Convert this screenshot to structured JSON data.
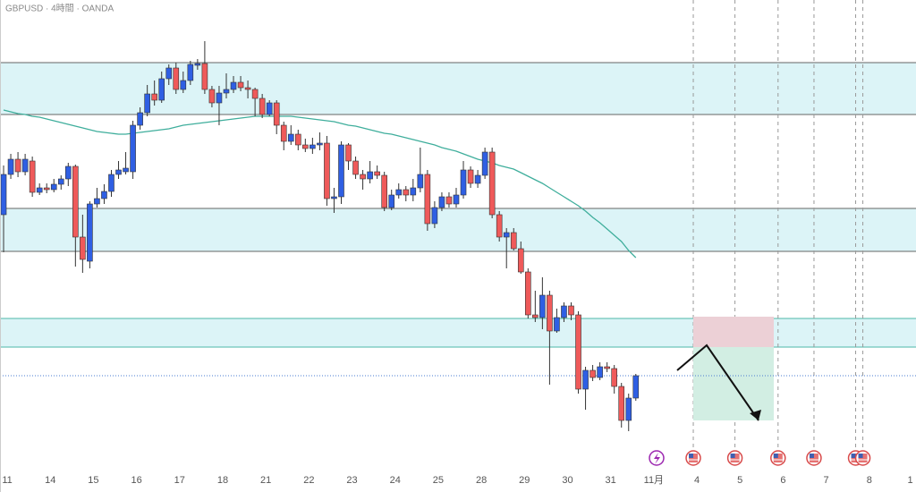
{
  "chart_data": {
    "type": "candlestick",
    "title": "GBPUSD · 4時間 · OANDA",
    "up_color": "#2f5fe3",
    "down_color": "#ef5a5a",
    "xlim": [
      -0.5,
      127
    ],
    "ylim": [
      1.265,
      1.32
    ],
    "xticks": [
      {
        "value": 0.5,
        "label": "11"
      },
      {
        "value": 6.5,
        "label": "14"
      },
      {
        "value": 12.5,
        "label": "15"
      },
      {
        "value": 18.5,
        "label": "16"
      },
      {
        "value": 24.5,
        "label": "17"
      },
      {
        "value": 30.5,
        "label": "18"
      },
      {
        "value": 36.5,
        "label": "21"
      },
      {
        "value": 42.5,
        "label": "22"
      },
      {
        "value": 48.5,
        "label": "23"
      },
      {
        "value": 54.5,
        "label": "24"
      },
      {
        "value": 60.5,
        "label": "25"
      },
      {
        "value": 66.5,
        "label": "28"
      },
      {
        "value": 72.5,
        "label": "29"
      },
      {
        "value": 78.5,
        "label": "30"
      },
      {
        "value": 84.5,
        "label": "31"
      },
      {
        "value": 90.5,
        "label": "11月"
      },
      {
        "value": 96.5,
        "label": "4"
      },
      {
        "value": 102.5,
        "label": "5"
      },
      {
        "value": 108.5,
        "label": "6"
      },
      {
        "value": 114.5,
        "label": "7"
      },
      {
        "value": 120.5,
        "label": "8"
      },
      {
        "value": 126.2,
        "label": "1"
      }
    ],
    "open": [
      1.296,
      1.3005,
      1.3022,
      1.3008,
      1.302,
      1.2985,
      1.299,
      1.2988,
      1.2994,
      1.3,
      1.3014,
      1.2935,
      1.2908,
      1.2972,
      1.2978,
      1.2986,
      1.3005,
      1.3008,
      1.3008,
      1.306,
      1.3074,
      1.3095,
      1.3088,
      1.3112,
      1.3124,
      1.31,
      1.311,
      1.3127,
      1.3129,
      1.31,
      1.3085,
      1.3096,
      1.31,
      1.3108,
      1.3102,
      1.31,
      1.309,
      1.3072,
      1.3085,
      1.306,
      1.3042,
      1.305,
      1.3038,
      1.3034,
      1.3038,
      1.304,
      1.2978,
      1.298,
      1.3038,
      1.302,
      1.3005,
      1.3,
      1.3008,
      1.3004,
      1.2968,
      1.2982,
      1.2988,
      1.2982,
      1.299,
      1.3005,
      1.295,
      1.2968,
      1.298,
      1.2972,
      1.2982,
      1.301,
      1.2995,
      1.3004,
      1.303,
      1.296,
      1.2935,
      1.294,
      1.2922,
      1.2896,
      1.2848,
      1.2845,
      1.287,
      1.283,
      1.2845,
      1.2858,
      1.2848,
      1.2765,
      1.2786,
      1.2778,
      1.279,
      1.2788,
      1.2768,
      1.273,
      1.2755
    ],
    "high": [
      1.3015,
      1.3028,
      1.303,
      1.3028,
      1.3025,
      1.2995,
      1.2995,
      1.3,
      1.3004,
      1.3018,
      1.3016,
      1.296,
      1.2975,
      1.299,
      1.2994,
      1.301,
      1.302,
      1.303,
      1.3065,
      1.308,
      1.3105,
      1.311,
      1.312,
      1.3128,
      1.313,
      1.312,
      1.3132,
      1.3134,
      1.3154,
      1.3104,
      1.3104,
      1.3118,
      1.3115,
      1.3115,
      1.311,
      1.3102,
      1.3095,
      1.3088,
      1.3088,
      1.3064,
      1.306,
      1.3055,
      1.3045,
      1.3046,
      1.3052,
      1.3048,
      1.299,
      1.3042,
      1.304,
      1.3025,
      1.301,
      1.302,
      1.3015,
      1.3008,
      1.2988,
      1.2995,
      1.2992,
      1.3,
      1.3035,
      1.301,
      1.2975,
      1.2985,
      1.2985,
      1.299,
      1.302,
      1.3014,
      1.301,
      1.3035,
      1.3035,
      1.2964,
      1.2945,
      1.2945,
      1.293,
      1.29,
      1.2875,
      1.289,
      1.2875,
      1.2855,
      1.2862,
      1.2862,
      1.2852,
      1.279,
      1.2792,
      1.2795,
      1.2795,
      1.2792,
      1.2772,
      1.276,
      1.2782
    ],
    "low": [
      1.2918,
      1.3,
      1.3002,
      1.3004,
      1.298,
      1.2982,
      1.2984,
      1.2985,
      1.2988,
      1.2992,
      1.2902,
      1.2895,
      1.29,
      1.2968,
      1.2972,
      1.298,
      1.3,
      1.3005,
      1.3,
      1.3055,
      1.307,
      1.3082,
      1.3085,
      1.3105,
      1.3095,
      1.3096,
      1.3105,
      1.3122,
      1.3095,
      1.308,
      1.306,
      1.309,
      1.3096,
      1.3098,
      1.309,
      1.307,
      1.3068,
      1.307,
      1.305,
      1.3032,
      1.3038,
      1.3032,
      1.303,
      1.3028,
      1.3032,
      1.297,
      1.2962,
      1.2972,
      1.301,
      1.3,
      1.2988,
      1.2995,
      1.3,
      1.2964,
      1.2965,
      1.2978,
      1.2975,
      1.2975,
      1.2985,
      1.2942,
      1.2945,
      1.2964,
      1.2968,
      1.2968,
      1.2978,
      1.299,
      1.299,
      1.3,
      1.2956,
      1.293,
      1.29,
      1.292,
      1.2894,
      1.2844,
      1.284,
      1.2832,
      1.277,
      1.2828,
      1.284,
      1.2842,
      1.276,
      1.2742,
      1.2774,
      1.2775,
      1.2784,
      1.276,
      1.2722,
      1.2718,
      1.2752
    ],
    "close": [
      1.3005,
      1.3022,
      1.3008,
      1.3022,
      1.2985,
      1.299,
      1.2988,
      1.2994,
      1.3,
      1.3014,
      1.2935,
      1.291,
      1.2972,
      1.2978,
      1.2986,
      1.3005,
      1.301,
      1.3012,
      1.306,
      1.3074,
      1.3095,
      1.3088,
      1.3112,
      1.3124,
      1.31,
      1.311,
      1.3128,
      1.3129,
      1.31,
      1.3085,
      1.3096,
      1.31,
      1.3108,
      1.3102,
      1.31,
      1.309,
      1.3072,
      1.3085,
      1.306,
      1.3042,
      1.305,
      1.3038,
      1.3034,
      1.3038,
      1.304,
      1.2978,
      1.298,
      1.3038,
      1.302,
      1.3005,
      1.3,
      1.3008,
      1.3004,
      1.2968,
      1.2982,
      1.2988,
      1.2982,
      1.299,
      1.3005,
      1.295,
      1.2968,
      1.298,
      1.2972,
      1.2982,
      1.301,
      1.2995,
      1.3004,
      1.303,
      1.296,
      1.2935,
      1.294,
      1.2922,
      1.2896,
      1.2848,
      1.2845,
      1.287,
      1.283,
      1.2845,
      1.2858,
      1.2848,
      1.2765,
      1.2786,
      1.2778,
      1.279,
      1.2788,
      1.2768,
      1.273,
      1.2755,
      1.278
    ],
    "ma": {
      "color": "#3fae9c",
      "values": [
        1.3077,
        1.3075,
        1.3073,
        1.3072,
        1.307,
        1.3069,
        1.3067,
        1.3065,
        1.3063,
        1.3061,
        1.3059,
        1.3057,
        1.3055,
        1.3053,
        1.3052,
        1.3051,
        1.305,
        1.305,
        1.3051,
        1.3052,
        1.3053,
        1.3054,
        1.3055,
        1.3056,
        1.3058,
        1.306,
        1.3061,
        1.3062,
        1.3063,
        1.3064,
        1.3065,
        1.3066,
        1.3067,
        1.3068,
        1.3069,
        1.307,
        1.307,
        1.307,
        1.307,
        1.307,
        1.307,
        1.3069,
        1.3068,
        1.3067,
        1.3066,
        1.3065,
        1.3064,
        1.3062,
        1.306,
        1.3059,
        1.3057,
        1.3055,
        1.3053,
        1.3051,
        1.305,
        1.3048,
        1.3046,
        1.3044,
        1.3042,
        1.304,
        1.3038,
        1.3035,
        1.3033,
        1.3031,
        1.3028,
        1.3025,
        1.3022,
        1.302,
        1.3018,
        1.3015,
        1.3013,
        1.3011,
        1.3007,
        1.3003,
        1.2999,
        1.2995,
        1.299,
        1.2985,
        1.298,
        1.2975,
        1.297,
        1.2964,
        1.2957,
        1.2951,
        1.2944,
        1.2937,
        1.293,
        1.292,
        1.2912
      ]
    },
    "zones": [
      [
        1.313,
        1.3072
      ],
      [
        1.2967,
        1.2919
      ],
      [
        1.2844,
        1.2812
      ]
    ],
    "zone_color": "#dcf4f7",
    "position": {
      "x": [
        96,
        107.2
      ],
      "stop": 1.2846,
      "entry": 1.2812,
      "target": 1.273,
      "stop_color": "#ecd0d6",
      "target_color": "#d2eee3"
    },
    "event_x": [
      96,
      101.8,
      107.8,
      112.8,
      118.6,
      119.6
    ]
  }
}
